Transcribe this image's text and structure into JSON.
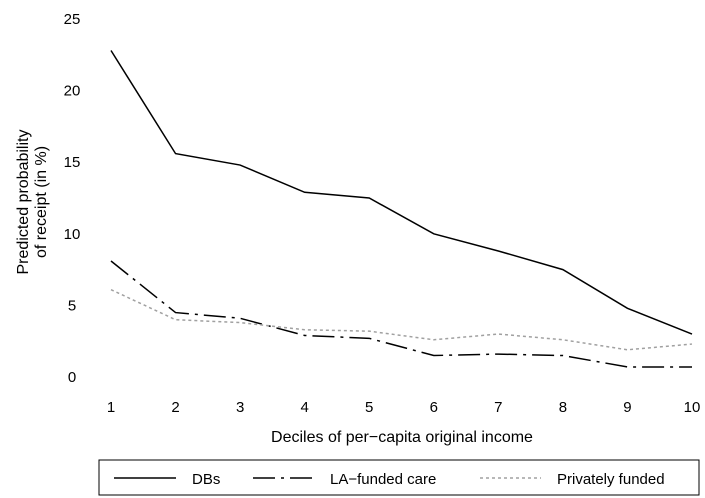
{
  "chart_data": {
    "type": "line",
    "x": [
      1,
      2,
      3,
      4,
      5,
      6,
      7,
      8,
      9,
      10
    ],
    "series": [
      {
        "name": "DBs",
        "values": [
          22.8,
          15.6,
          14.8,
          12.9,
          12.5,
          10.0,
          8.8,
          7.5,
          4.8,
          3.0
        ],
        "color": "#000000",
        "style": "solid"
      },
      {
        "name": "LA−funded care",
        "values": [
          8.1,
          4.5,
          4.1,
          2.9,
          2.7,
          1.5,
          1.6,
          1.5,
          0.7,
          0.7
        ],
        "color": "#000000",
        "style": "long-dash-dot"
      },
      {
        "name": "Privately funded",
        "values": [
          6.1,
          4.0,
          3.8,
          3.3,
          3.2,
          2.6,
          3.0,
          2.6,
          1.9,
          2.3
        ],
        "color": "#a0a0a0",
        "style": "dotted"
      }
    ],
    "xlabel": "Deciles of per−capita original income",
    "ylabel_line1": "Predicted probability",
    "ylabel_line2": "of receipt (in %)",
    "xticks": [
      "1",
      "2",
      "3",
      "4",
      "5",
      "6",
      "7",
      "8",
      "9",
      "10"
    ],
    "yticks": [
      "0",
      "5",
      "10",
      "15",
      "20",
      "25"
    ],
    "ylim": [
      0,
      25
    ],
    "xlim": [
      1,
      10
    ],
    "grid": false,
    "legend_position": "bottom"
  }
}
